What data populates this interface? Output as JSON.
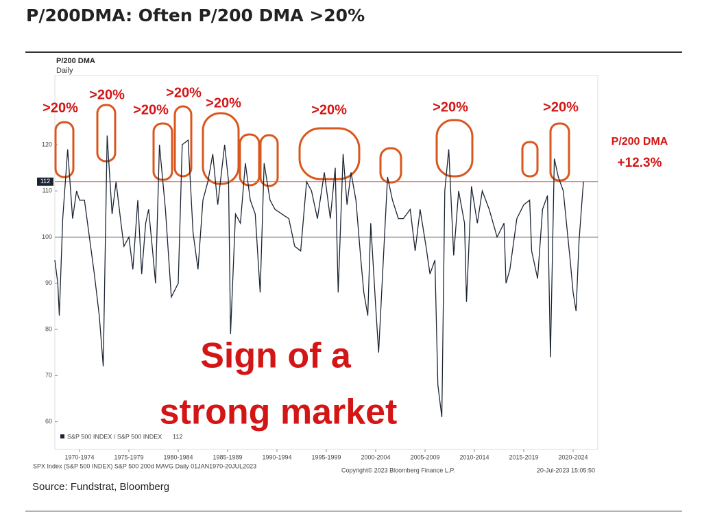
{
  "chart_data": {
    "type": "line",
    "title": "P/200DMA: Often P/200 DMA >20%",
    "chart_header": "P/200 DMA",
    "subheader": "Daily",
    "series": [
      {
        "name": "S&P 500 INDEX / S&P 500 INDEX",
        "color": "#1a2433",
        "x": [
          1970.0,
          1970.3,
          1970.45,
          1970.8,
          1971.3,
          1971.8,
          1972.2,
          1972.5,
          1973.0,
          1973.5,
          1974.0,
          1974.5,
          1974.9,
          1975.3,
          1975.8,
          1976.2,
          1976.7,
          1977.0,
          1977.5,
          1977.9,
          1978.4,
          1978.8,
          1979.2,
          1979.5,
          1979.9,
          1980.2,
          1980.6,
          1981.2,
          1981.8,
          1982.5,
          1982.9,
          1983.5,
          1984.0,
          1984.5,
          1985.0,
          1985.5,
          1986.0,
          1986.5,
          1987.2,
          1987.6,
          1987.8,
          1988.3,
          1988.8,
          1989.3,
          1989.8,
          1990.3,
          1990.8,
          1991.2,
          1991.8,
          1992.3,
          1993.0,
          1993.7,
          1994.3,
          1994.9,
          1995.5,
          1996.0,
          1996.6,
          1997.3,
          1997.9,
          1998.4,
          1998.7,
          1999.2,
          1999.6,
          2000.0,
          2000.5,
          2001.0,
          2001.3,
          2001.7,
          2002.0,
          2002.5,
          2002.8,
          2003.2,
          2003.7,
          2004.2,
          2004.8,
          2005.3,
          2006.0,
          2006.5,
          2007.0,
          2007.6,
          2008.0,
          2008.5,
          2008.8,
          2009.2,
          2009.5,
          2009.9,
          2010.4,
          2010.9,
          2011.5,
          2011.7,
          2012.2,
          2012.8,
          2013.3,
          2014.0,
          2014.8,
          2015.5,
          2015.7,
          2016.1,
          2016.8,
          2017.5,
          2018.1,
          2018.3,
          2018.9,
          2019.4,
          2019.9,
          2020.2,
          2020.6,
          2021.0,
          2021.5,
          2022.2,
          2022.5,
          2022.8,
          2023.1,
          2023.4,
          2023.55
        ],
        "values": [
          95,
          90,
          83,
          104,
          119,
          104,
          110,
          108,
          108,
          100,
          92,
          83,
          72,
          122,
          105,
          112,
          103,
          98,
          100,
          93,
          108,
          92,
          103,
          106,
          97,
          90,
          120,
          106,
          87,
          90,
          120,
          121,
          101,
          93,
          108,
          112,
          118,
          107,
          120,
          112,
          79,
          105,
          103,
          116,
          108,
          105,
          88,
          116,
          108,
          106,
          105,
          104,
          98,
          97,
          112,
          110,
          104,
          114,
          104,
          115,
          88,
          118,
          107,
          114,
          108,
          95,
          88,
          83,
          103,
          85,
          75,
          92,
          113,
          108,
          104,
          104,
          106,
          97,
          106,
          98,
          92,
          95,
          68,
          61,
          110,
          119,
          96,
          110,
          103,
          86,
          111,
          103,
          110,
          106,
          100,
          103,
          90,
          93,
          104,
          107,
          108,
          97,
          91,
          106,
          109,
          74,
          117,
          113,
          110,
          95,
          88,
          84,
          99,
          108,
          112
        ]
      }
    ],
    "xlim": [
      1970,
      2025
    ],
    "xticks": [
      {
        "value": 1972.5,
        "label": "1970-1974"
      },
      {
        "value": 1977.5,
        "label": "1975-1979"
      },
      {
        "value": 1982.5,
        "label": "1980-1984"
      },
      {
        "value": 1987.5,
        "label": "1985-1989"
      },
      {
        "value": 1992.5,
        "label": "1990-1994"
      },
      {
        "value": 1997.5,
        "label": "1995-1999"
      },
      {
        "value": 2002.5,
        "label": "2000-2004"
      },
      {
        "value": 2007.5,
        "label": "2005-2009"
      },
      {
        "value": 2012.5,
        "label": "2010-2014"
      },
      {
        "value": 2017.5,
        "label": "2015-2019"
      },
      {
        "value": 2022.5,
        "label": "2020-2024"
      }
    ],
    "ylim": [
      54,
      135
    ],
    "yticks": [
      60,
      70,
      80,
      90,
      100,
      110,
      120
    ],
    "current_value": 112,
    "current_line_color": "#e06060",
    "baseline": 100,
    "peak_labels": [
      ">20%",
      ">20%",
      ">20%",
      ">20%",
      ">20%",
      ">20%",
      ">20%",
      ">20%"
    ],
    "annotation": [
      "P/200 DMA",
      "+12.3%"
    ],
    "callout": [
      "Sign of a",
      "strong market"
    ],
    "footer_left": "SPX Index (S&P 500 INDEX) S&P 500 200d MAVG  Daily 01JAN1970-20JUL2023",
    "footer_mid": "Copyright© 2023 Bloomberg Finance L.P.",
    "footer_right": "20-Jul-2023 15:05:50",
    "source": "Source: Fundstrat, Bloomberg"
  }
}
